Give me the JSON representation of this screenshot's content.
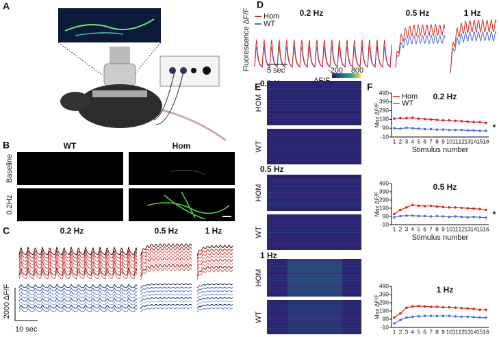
{
  "panel_labels": [
    "A",
    "B",
    "C",
    "D",
    "E",
    "F"
  ],
  "panel_B": {
    "columns": [
      "WT",
      "Hom"
    ],
    "rows": [
      "Baseline",
      "0.2Hz"
    ]
  },
  "panel_C": {
    "frequencies": [
      "0.2 Hz",
      "0.5 Hz",
      "1 Hz"
    ],
    "y_scale": "2000 ΔF/F",
    "x_scale": "10 sec"
  },
  "panel_D": {
    "y_label": "Fluorescence ΔF/F",
    "legend": [
      "Hom",
      "WT"
    ],
    "frequencies": [
      "0.2 Hz",
      "0.5 Hz",
      "1 Hz"
    ],
    "x_scale": "5 sec"
  },
  "panel_E": {
    "frequencies": [
      "0.2 Hz",
      "0.5 Hz",
      "1 Hz"
    ],
    "rows": [
      "HOM",
      "WT"
    ],
    "colorbar": {
      "label": "ΔF/F",
      "min": -200,
      "max": 800
    }
  },
  "panel_F": {
    "charts": [
      {
        "type": "line",
        "title": "0.2 Hz",
        "x_label": "Stimulus number",
        "y_label": "Max ΔF/F",
        "categories": [
          "1",
          "2",
          "3",
          "4",
          "5",
          "6",
          "7",
          "8",
          "9",
          "10",
          "11",
          "12",
          "13",
          "14",
          "15",
          "16"
        ],
        "ylim": [
          -10,
          490
        ],
        "yticks": [
          -10,
          90,
          190,
          290,
          390,
          490
        ],
        "annotation": "*",
        "series": [
          {
            "name": "Hom",
            "color": "#d7261e",
            "values": [
              200,
              205,
              205,
              210,
              200,
              195,
              190,
              185,
              180,
              180,
              175,
              170,
              165,
              160,
              160,
              150
            ]
          },
          {
            "name": "WT",
            "color": "#4a6fd8",
            "values": [
              90,
              85,
              95,
              90,
              85,
              80,
              80,
              75,
              75,
              70,
              70,
              70,
              65,
              65,
              60,
              60
            ]
          }
        ]
      },
      {
        "type": "line",
        "title": "0.5 Hz",
        "x_label": "Stimulus number",
        "y_label": "Max ΔF/F",
        "categories": [
          "1",
          "2",
          "3",
          "4",
          "5",
          "6",
          "7",
          "8",
          "9",
          "10",
          "11",
          "12",
          "13",
          "14",
          "15",
          "16"
        ],
        "ylim": [
          -10,
          490
        ],
        "yticks": [
          -10,
          90,
          190,
          290,
          390,
          490
        ],
        "annotation": "*",
        "series": [
          {
            "color": "#d7261e",
            "values": [
              120,
              170,
              200,
              230,
              220,
              215,
              220,
              210,
              205,
              200,
              200,
              195,
              190,
              185,
              180,
              170
            ]
          },
          {
            "color": "#4a6fd8",
            "values": [
              80,
              95,
              100,
              100,
              95,
              95,
              90,
              95,
              90,
              85,
              90,
              85,
              80,
              85,
              80,
              75
            ]
          }
        ]
      },
      {
        "type": "line",
        "title": "1 Hz",
        "x_label": "Stimulus number",
        "y_label": "Max ΔF/F",
        "categories": [
          "1",
          "2",
          "3",
          "4",
          "5",
          "6",
          "7",
          "8",
          "9",
          "10",
          "11",
          "12",
          "13",
          "14",
          "15",
          "16"
        ],
        "ylim": [
          -10,
          490
        ],
        "yticks": [
          -10,
          90,
          190,
          290,
          390,
          490
        ],
        "series": [
          {
            "color": "#d7261e",
            "values": [
              110,
              160,
              230,
              245,
              250,
              245,
              240,
              240,
              235,
              235,
              230,
              225,
              220,
              215,
              205,
              205
            ]
          },
          {
            "color": "#4a6fd8",
            "values": [
              40,
              80,
              110,
              120,
              125,
              130,
              130,
              130,
              130,
              130,
              125,
              120,
              120,
              115,
              110,
              110
            ]
          }
        ]
      }
    ]
  }
}
